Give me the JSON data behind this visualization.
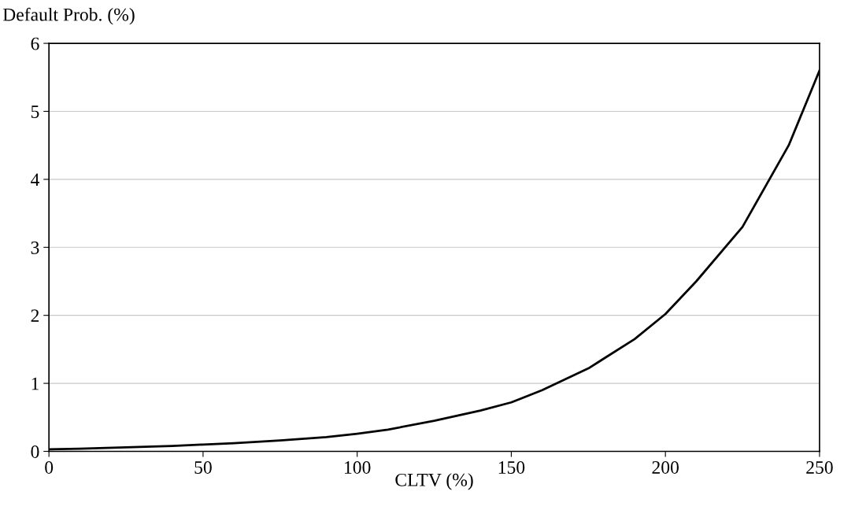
{
  "chart_data": {
    "type": "line",
    "ylabel": "Default Prob. (%)",
    "xlabel": "CLTV (%)",
    "x": [
      0,
      10,
      25,
      40,
      50,
      60,
      75,
      90,
      100,
      110,
      125,
      140,
      150,
      160,
      175,
      190,
      200,
      210,
      225,
      240,
      250
    ],
    "series": [
      {
        "color": "#000000",
        "values": [
          0.03,
          0.04,
          0.06,
          0.08,
          0.1,
          0.12,
          0.16,
          0.21,
          0.26,
          0.32,
          0.45,
          0.6,
          0.72,
          0.9,
          1.22,
          1.65,
          2.02,
          2.5,
          3.3,
          4.5,
          5.6
        ]
      }
    ],
    "xlim": [
      0,
      250
    ],
    "xticks": [
      0,
      50,
      100,
      150,
      200,
      250
    ],
    "ylim": [
      0,
      6
    ],
    "yticks": [
      0,
      1,
      2,
      3,
      4,
      5,
      6
    ],
    "grid": "y",
    "marker": "none",
    "line_style": "solid"
  }
}
